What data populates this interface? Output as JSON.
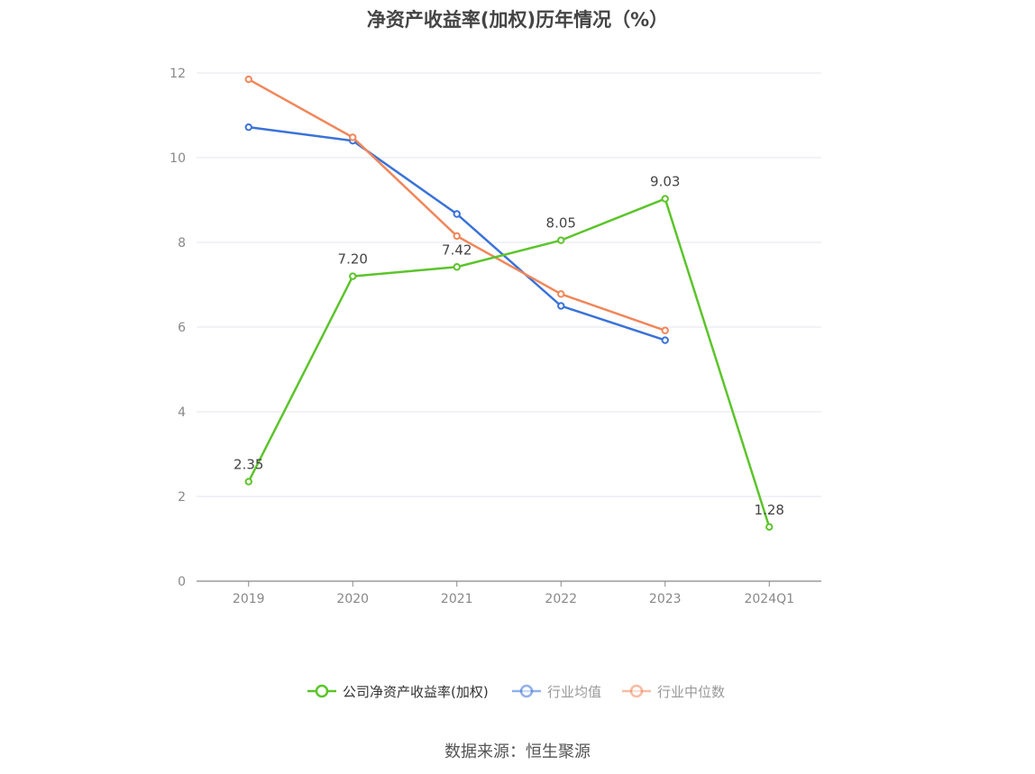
{
  "chart_data": {
    "type": "line",
    "title": "净资产收益率(加权)历年情况（%）",
    "categories": [
      "2019",
      "2020",
      "2021",
      "2022",
      "2023",
      "2024Q1"
    ],
    "ylim": [
      0,
      12
    ],
    "yticks": [
      0,
      2,
      4,
      6,
      8,
      10,
      12
    ],
    "grid": true,
    "legend_position": "bottom",
    "series": [
      {
        "name": "公司净资产收益率(加权)",
        "color": "#5cc42b",
        "values": [
          2.35,
          7.2,
          7.42,
          8.05,
          9.03,
          1.28
        ],
        "labels": [
          "2.35",
          "7.20",
          "7.42",
          "8.05",
          "9.03",
          "1.28"
        ]
      },
      {
        "name": "行业均值",
        "color": "#3a72d8",
        "values": [
          10.72,
          10.4,
          8.67,
          6.5,
          5.69,
          null
        ]
      },
      {
        "name": "行业中位数",
        "color": "#f0865a",
        "values": [
          11.85,
          10.48,
          8.15,
          6.78,
          5.92,
          null
        ]
      }
    ]
  },
  "source_text": "数据来源：恒生聚源"
}
